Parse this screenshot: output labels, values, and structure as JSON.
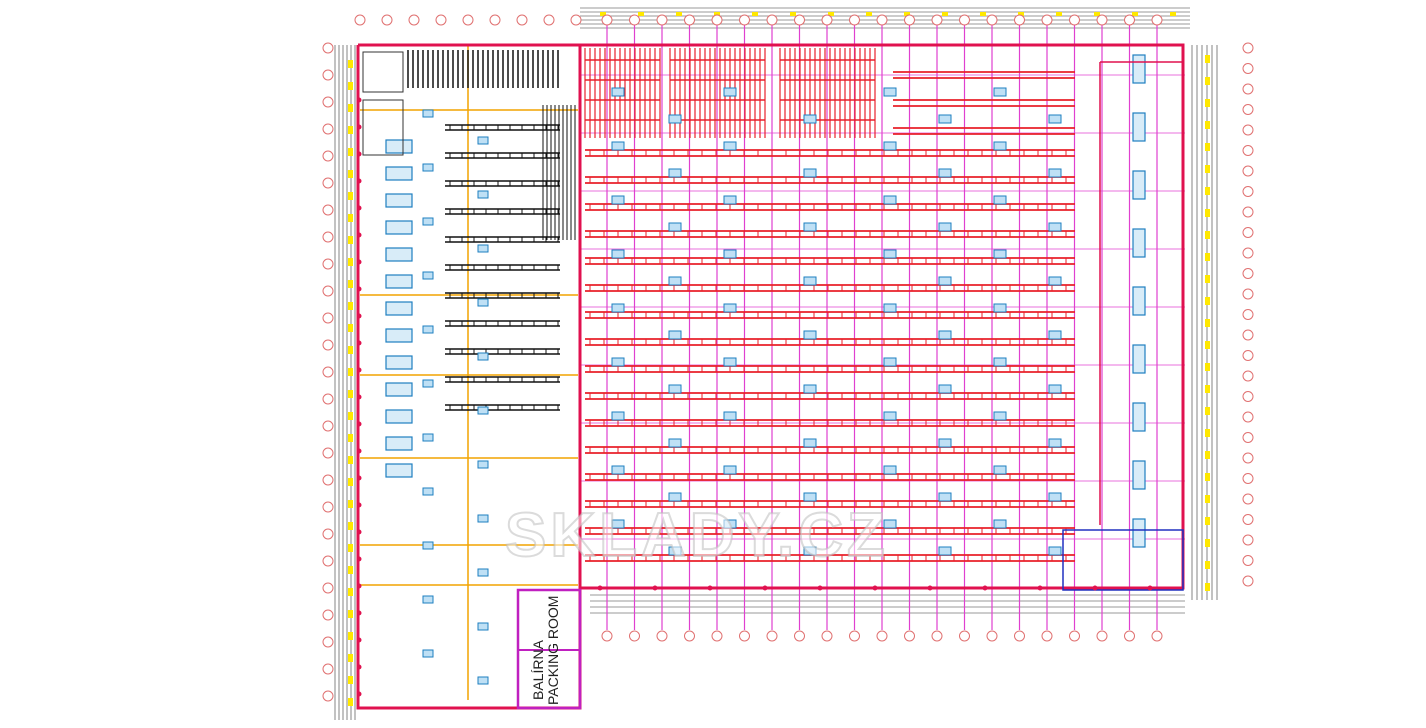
{
  "drawing": {
    "type": "warehouse floor plan",
    "watermark": "SKLADY.CZ",
    "rooms": [
      {
        "label": "PACKING ROOM"
      },
      {
        "label": "BALÍRNA"
      }
    ],
    "colors": {
      "walls": "#e0114f",
      "racks": "#e8202a",
      "grid_lines": "#e040d0",
      "light_fixtures": "#1e7fc0",
      "left_racks": "#111111",
      "beams": "#f2a400",
      "highlights": "#ffe800",
      "axis_bubbles": "#e07070"
    }
  }
}
